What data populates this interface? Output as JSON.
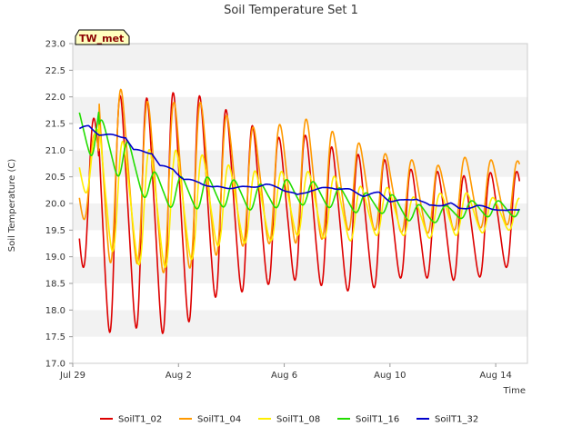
{
  "chart_data": {
    "type": "line",
    "title": "Soil Temperature Set 1",
    "xlabel": "Time",
    "ylabel": "Soil Temperature (C)",
    "station_badge": "TW_met",
    "xlim": [
      0,
      17.2
    ],
    "ylim": [
      17.0,
      23.0
    ],
    "x_ticks": [
      {
        "value": 0,
        "label": "Jul 29"
      },
      {
        "value": 4,
        "label": "Aug 2"
      },
      {
        "value": 8,
        "label": "Aug 6"
      },
      {
        "value": 12,
        "label": "Aug 10"
      },
      {
        "value": 16,
        "label": "Aug 14"
      }
    ],
    "y_ticks": [
      17.0,
      17.5,
      18.0,
      18.5,
      19.0,
      19.5,
      20.0,
      20.5,
      21.0,
      21.5,
      22.0,
      22.5,
      23.0
    ],
    "y_tick_labels": [
      "17.0",
      "17.5",
      "18.0",
      "18.5",
      "19.0",
      "19.5",
      "20.0",
      "20.5",
      "21.0",
      "21.5",
      "22.0",
      "22.5",
      "23.0"
    ],
    "grid": "horizontal alternating bands",
    "legend_position": "bottom",
    "x_units": "days since Jul 29",
    "series": [
      {
        "name": "SoilT1_02",
        "color": "#dd0000",
        "x_start": 0.25,
        "x_end": 16.9,
        "points_per_day": 8,
        "mean": [
          20.2,
          20.0,
          19.8,
          19.8,
          19.8,
          20.1,
          20.0,
          19.9,
          19.9,
          19.9,
          19.7,
          19.6,
          19.7,
          19.6,
          19.6,
          19.5,
          19.7
        ],
        "amp": [
          1.4,
          2.5,
          2.1,
          2.2,
          2.3,
          1.9,
          1.7,
          1.5,
          1.3,
          1.4,
          1.3,
          1.3,
          1.1,
          1.0,
          1.0,
          1.0,
          0.9
        ],
        "phase": 0.6
      },
      {
        "name": "SoilT1_04",
        "color": "#ff9900",
        "x_start": 0.25,
        "x_end": 16.9,
        "points_per_day": 8,
        "mean": [
          20.5,
          20.8,
          20.5,
          20.3,
          20.3,
          20.4,
          20.4,
          20.3,
          20.4,
          20.4,
          20.4,
          20.3,
          20.2,
          20.1,
          20.1,
          20.2,
          20.2
        ],
        "amp": [
          0.8,
          2.0,
          1.5,
          1.6,
          1.6,
          1.5,
          1.2,
          1.1,
          1.1,
          1.2,
          0.9,
          0.8,
          0.7,
          0.7,
          0.6,
          0.7,
          0.6
        ],
        "phase": 0.63
      },
      {
        "name": "SoilT1_08",
        "color": "#ffee00",
        "x_start": 0.25,
        "x_end": 16.9,
        "points_per_day": 8,
        "mean": [
          20.8,
          20.5,
          20.0,
          19.9,
          19.9,
          20.0,
          20.0,
          19.9,
          20.0,
          20.0,
          19.9,
          19.8,
          19.9,
          19.7,
          19.8,
          19.8,
          19.8
        ],
        "amp": [
          0.6,
          1.2,
          1.1,
          1.1,
          1.1,
          0.9,
          0.7,
          0.7,
          0.6,
          0.6,
          0.6,
          0.5,
          0.4,
          0.4,
          0.4,
          0.4,
          0.3
        ],
        "phase": 0.7
      },
      {
        "name": "SoilT1_16",
        "color": "#22dd00",
        "x_start": 0.25,
        "x_end": 16.9,
        "points_per_day": 8,
        "mean": [
          21.4,
          21.2,
          20.8,
          20.3,
          20.2,
          20.2,
          20.2,
          20.1,
          20.2,
          20.2,
          20.1,
          20.0,
          20.0,
          19.8,
          19.8,
          19.9,
          19.9
        ],
        "amp": [
          0.5,
          0.4,
          0.4,
          0.3,
          0.3,
          0.3,
          0.25,
          0.25,
          0.25,
          0.22,
          0.2,
          0.2,
          0.18,
          0.18,
          0.15,
          0.15,
          0.15
        ],
        "phase": 0.9
      },
      {
        "name": "SoilT1_32",
        "color": "#0000cc",
        "x_start": 0.25,
        "x_end": 16.9,
        "points_per_day": 8,
        "anchors": [
          [
            0.25,
            21.4
          ],
          [
            0.6,
            21.45
          ],
          [
            1.0,
            21.3
          ],
          [
            2.0,
            21.25
          ],
          [
            2.3,
            21.0
          ],
          [
            3.0,
            20.95
          ],
          [
            3.3,
            20.7
          ],
          [
            3.8,
            20.65
          ],
          [
            4.2,
            20.45
          ],
          [
            4.8,
            20.4
          ],
          [
            5.3,
            20.3
          ],
          [
            6.5,
            20.3
          ],
          [
            7.3,
            20.35
          ],
          [
            7.8,
            20.3
          ],
          [
            8.5,
            20.15
          ],
          [
            9.0,
            20.25
          ],
          [
            9.8,
            20.3
          ],
          [
            10.5,
            20.25
          ],
          [
            11.0,
            20.15
          ],
          [
            11.6,
            20.2
          ],
          [
            12.0,
            20.05
          ],
          [
            12.5,
            20.05
          ],
          [
            13.0,
            20.1
          ],
          [
            13.5,
            19.95
          ],
          [
            14.3,
            20.0
          ],
          [
            14.6,
            19.9
          ],
          [
            15.3,
            19.95
          ],
          [
            16.0,
            19.9
          ],
          [
            16.4,
            19.85
          ],
          [
            16.9,
            19.9
          ]
        ]
      }
    ]
  }
}
